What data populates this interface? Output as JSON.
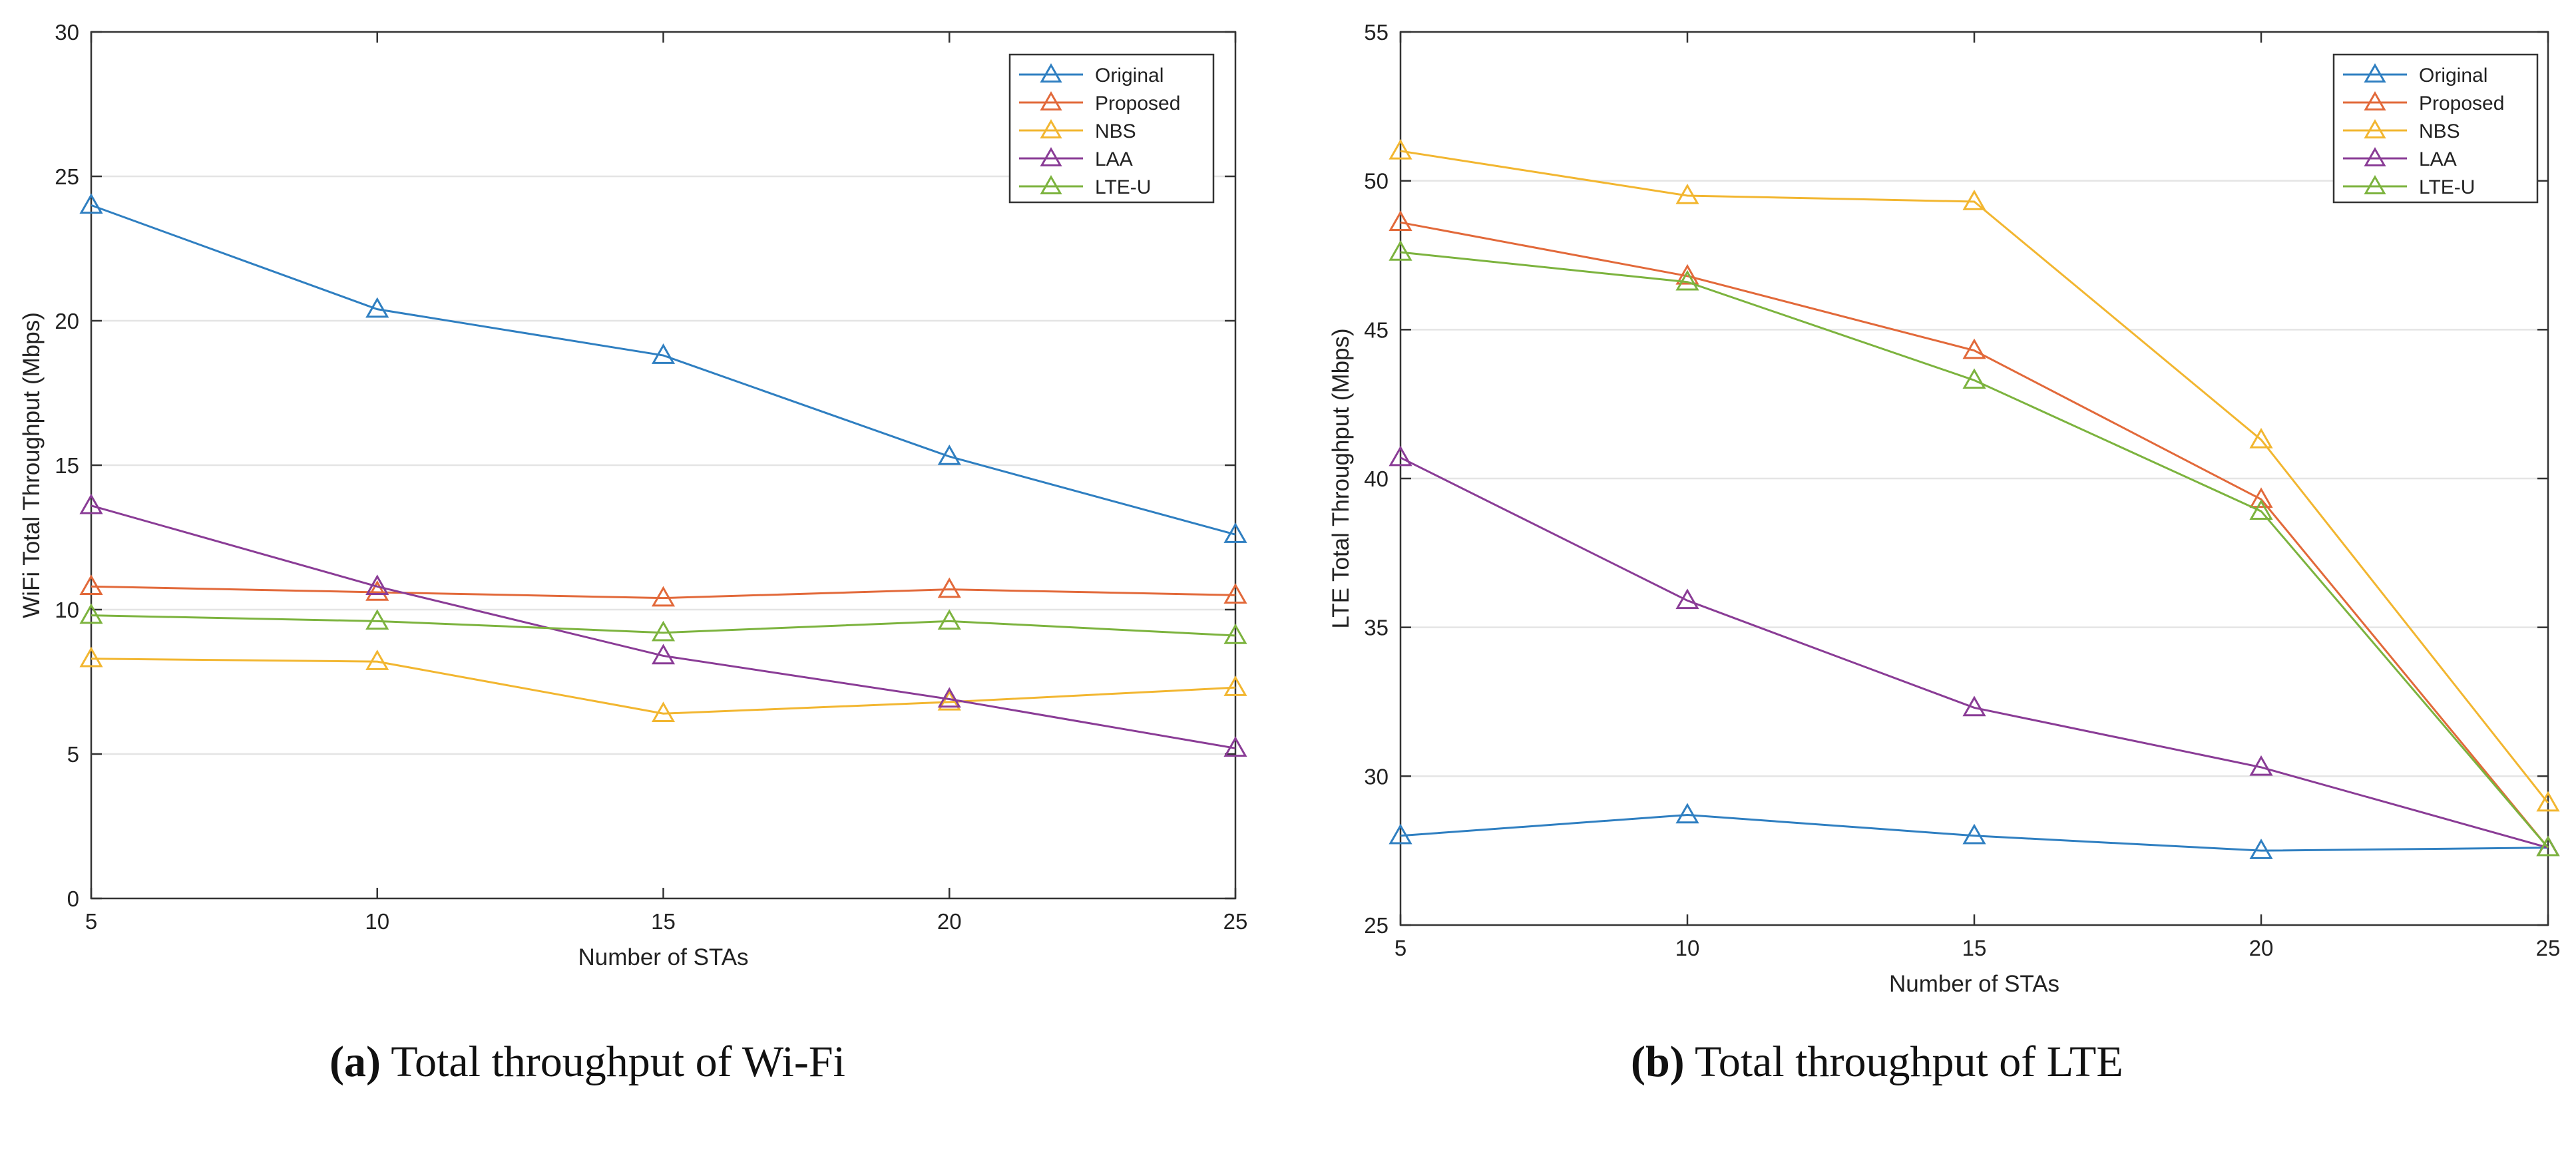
{
  "chart_data": [
    {
      "type": "line",
      "title": "",
      "xlabel": "Number of STAs",
      "ylabel": "WiFi Total Throughput (Mbps)",
      "x": [
        5,
        10,
        15,
        20,
        25
      ],
      "xticks": [
        "5",
        "10",
        "15",
        "20",
        "25"
      ],
      "ylim": [
        0,
        30
      ],
      "yticks": [
        "0",
        "5",
        "10",
        "15",
        "20",
        "25",
        "30"
      ],
      "grid": "horizontal",
      "legend_position": "top-right",
      "series": [
        {
          "name": "Original",
          "values": [
            24.0,
            20.4,
            18.8,
            15.3,
            12.6
          ]
        },
        {
          "name": "Proposed",
          "values": [
            10.8,
            10.6,
            10.4,
            10.7,
            10.5
          ]
        },
        {
          "name": "NBS",
          "values": [
            8.3,
            8.2,
            6.4,
            6.8,
            7.3
          ]
        },
        {
          "name": "LAA",
          "values": [
            13.6,
            10.8,
            8.4,
            6.9,
            5.2
          ]
        },
        {
          "name": "LTE-U",
          "values": [
            9.8,
            9.6,
            9.2,
            9.6,
            9.1
          ]
        }
      ],
      "caption_label": "(a)",
      "caption_text": "Total throughput of Wi-Fi"
    },
    {
      "type": "line",
      "title": "",
      "xlabel": "Number of STAs",
      "ylabel": "LTE Total Throughput (Mbps)",
      "x": [
        5,
        10,
        15,
        20,
        25
      ],
      "xticks": [
        "5",
        "10",
        "15",
        "20",
        "25"
      ],
      "ylim": [
        25,
        55
      ],
      "yticks": [
        "25",
        "30",
        "35",
        "40",
        "45",
        "50",
        "55"
      ],
      "grid": "horizontal",
      "legend_position": "top-right",
      "series": [
        {
          "name": "Original",
          "values": [
            28.0,
            28.7,
            28.0,
            27.5,
            27.6
          ]
        },
        {
          "name": "Proposed",
          "values": [
            48.6,
            46.8,
            44.3,
            39.3,
            27.6
          ]
        },
        {
          "name": "NBS",
          "values": [
            51.0,
            49.5,
            49.3,
            41.3,
            29.1
          ]
        },
        {
          "name": "LAA",
          "values": [
            40.7,
            35.9,
            32.3,
            30.3,
            27.6
          ]
        },
        {
          "name": "LTE-U",
          "values": [
            47.6,
            46.6,
            43.3,
            38.9,
            27.6
          ]
        }
      ],
      "caption_label": "(b)",
      "caption_text": "Total throughput of LTE"
    }
  ],
  "colors": {
    "Original": "#2f7fc1",
    "Proposed": "#e2693a",
    "NBS": "#f2b630",
    "LAA": "#8a3c96",
    "LTE-U": "#7cb33e",
    "axis": "#333333",
    "grid": "#e4e4e4"
  }
}
